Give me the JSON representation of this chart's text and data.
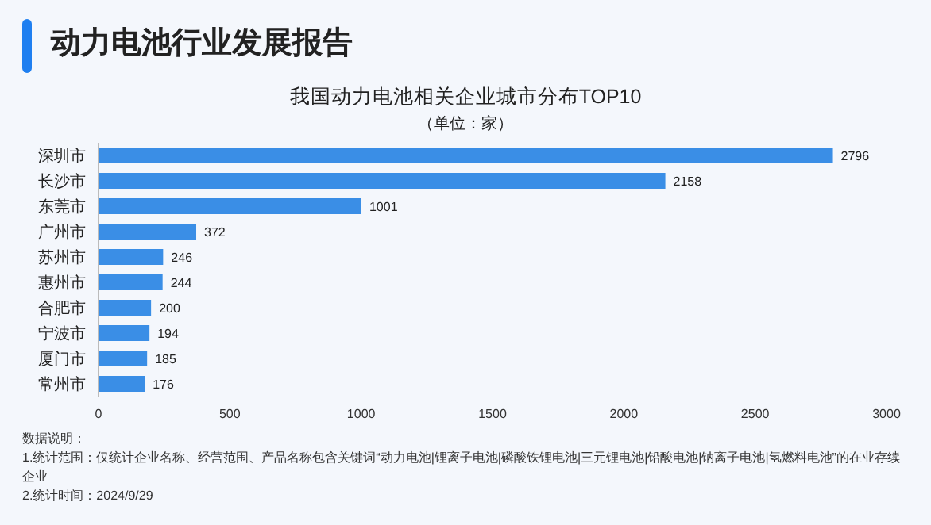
{
  "chart_data": {
    "type": "bar",
    "orientation": "horizontal",
    "title": "我国动力电池相关企业城市分布TOP10",
    "subtitle": "（单位：家）",
    "categories": [
      "深圳市",
      "长沙市",
      "东莞市",
      "广州市",
      "苏州市",
      "惠州市",
      "合肥市",
      "宁波市",
      "厦门市",
      "常州市"
    ],
    "values": [
      2796,
      2158,
      1001,
      372,
      246,
      244,
      200,
      194,
      185,
      176
    ],
    "color": "#3a8ee6",
    "data_labels": true,
    "xlim": [
      0,
      3000
    ],
    "xticks": [
      0,
      500,
      1000,
      1500,
      2000,
      2500,
      3000
    ],
    "grid": false,
    "annotations": [
      "动力电池行业发展报告",
      "数据说明：",
      "1.统计范围：仅统计企业名称、经营范围、产品名称包含关键词“动力电池|锂离子电池|磷酸铁锂电池|三元锂电池|铅酸电池|钠离子电池|氢燃料电池”的在业存续企业",
      "2.统计时间：2024/9/29"
    ]
  }
}
